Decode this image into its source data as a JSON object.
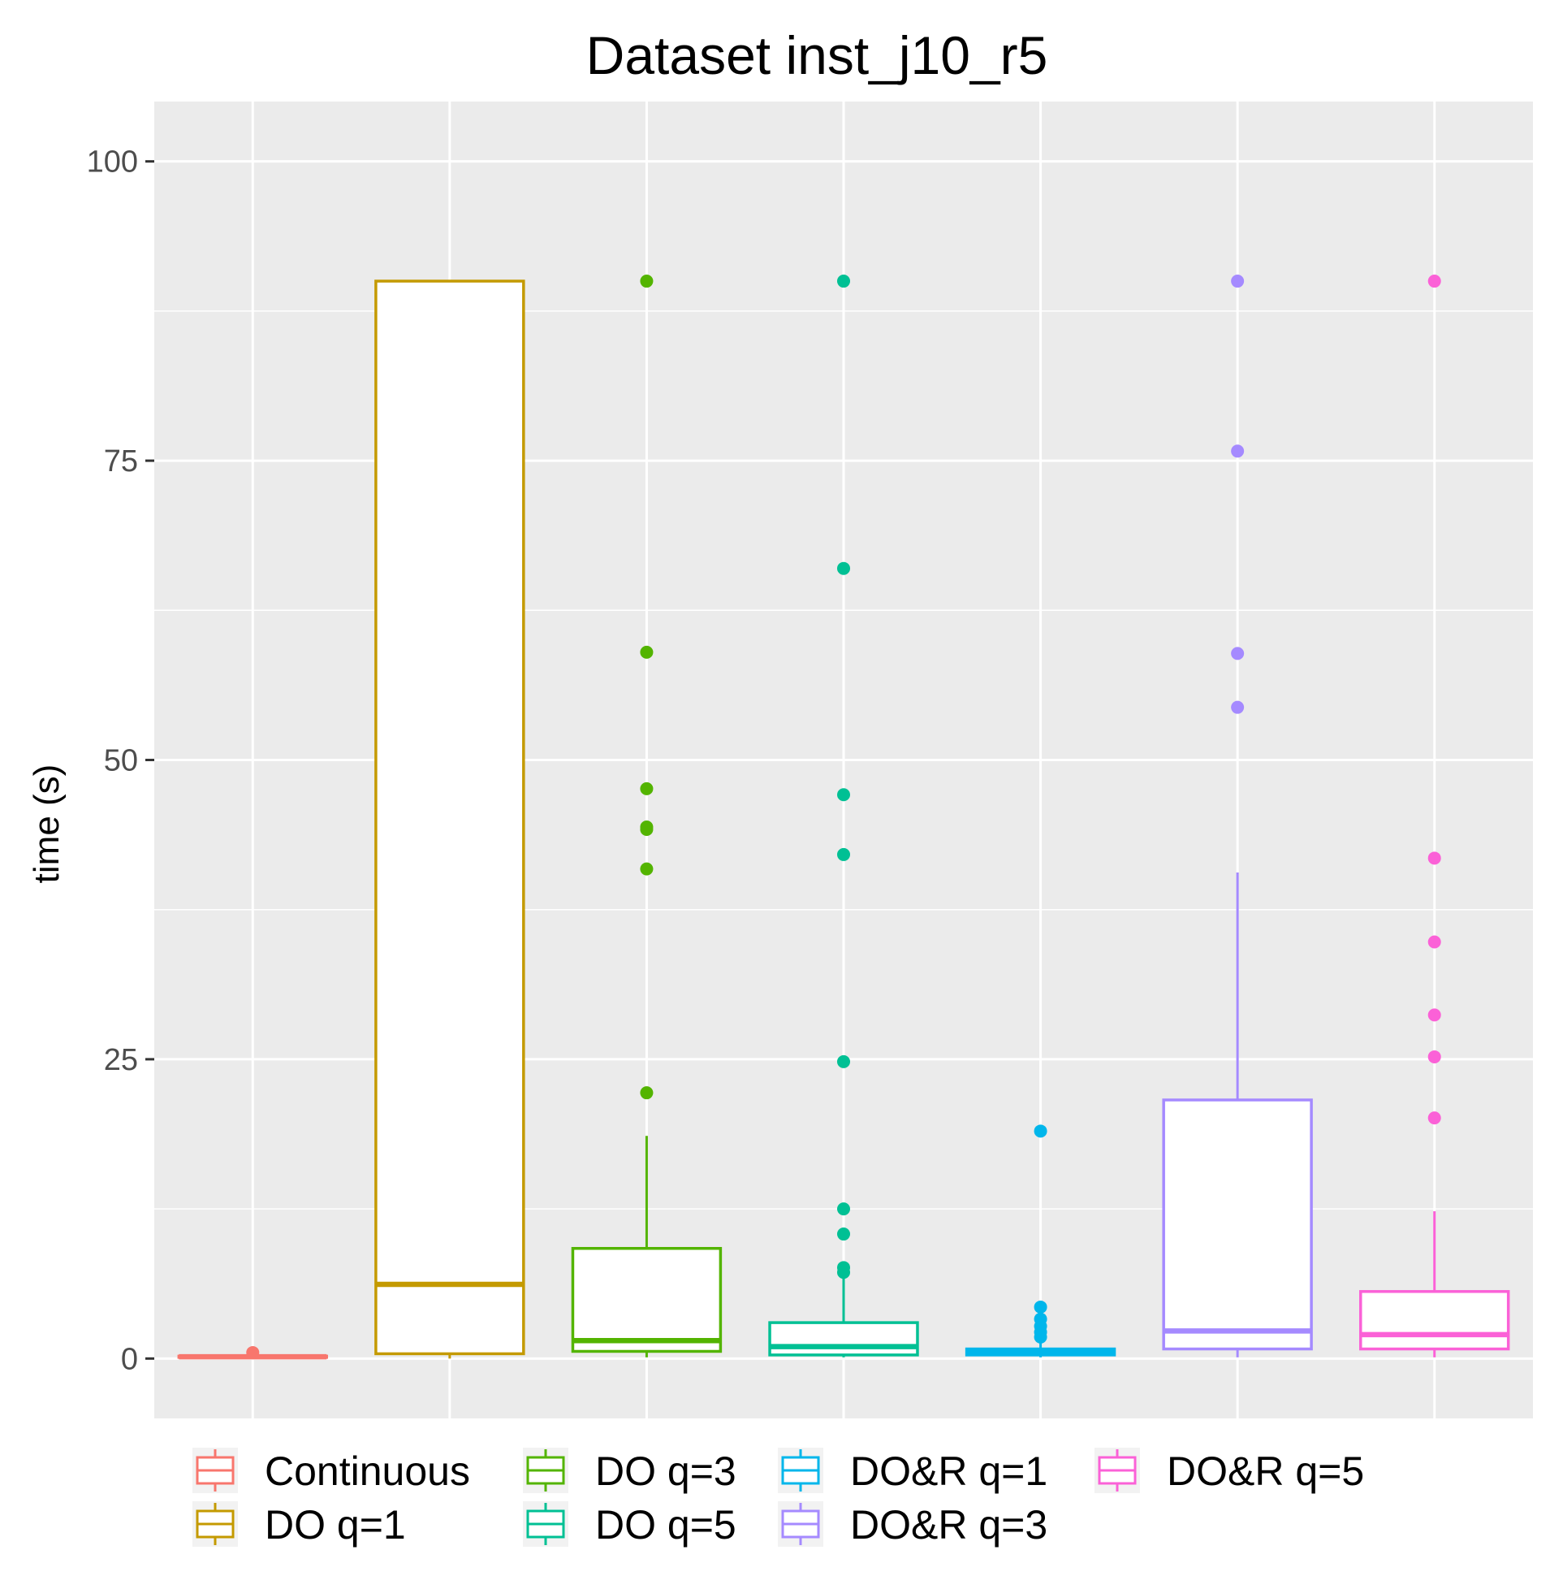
{
  "chart_data": {
    "type": "boxplot",
    "title": "Dataset inst_j10_r5",
    "xlabel": "",
    "ylabel": "time (s)",
    "ylim": [
      -5,
      105
    ],
    "yticks": [
      0,
      25,
      50,
      75,
      100
    ],
    "grid": true,
    "legend_position": "bottom",
    "categories": [
      "Continuous",
      "DO q=1",
      "DO q=3",
      "DO q=5",
      "DO&R q=1",
      "DO&R q=3",
      "DO&R q=5"
    ],
    "series": [
      {
        "name": "Continuous",
        "color": "#F8766D",
        "whisker_low": 0.1,
        "q1": 0.1,
        "median": 0.15,
        "q3": 0.2,
        "whisker_high": 0.3,
        "outliers": [
          0.5
        ]
      },
      {
        "name": "DO q=1",
        "color": "#C49A00",
        "whisker_low": 0.0,
        "q1": 0.4,
        "median": 6.2,
        "q3": 90.0,
        "whisker_high": 90.0,
        "outliers": []
      },
      {
        "name": "DO q=3",
        "color": "#53B400",
        "whisker_low": 0.1,
        "q1": 0.6,
        "median": 1.5,
        "q3": 9.2,
        "whisker_high": 18.6,
        "outliers": [
          22.2,
          40.9,
          44.2,
          44.4,
          47.6,
          59.0,
          90.0
        ]
      },
      {
        "name": "DO q=5",
        "color": "#00C094",
        "whisker_low": 0.1,
        "q1": 0.3,
        "median": 1.0,
        "q3": 3.0,
        "whisker_high": 6.8,
        "outliers": [
          7.2,
          7.6,
          10.4,
          12.5,
          24.8,
          42.1,
          47.1,
          66.0,
          90.0
        ]
      },
      {
        "name": "DO&R q=1",
        "color": "#00B6EB",
        "whisker_low": 0.1,
        "q1": 0.3,
        "median": 0.5,
        "q3": 0.8,
        "whisker_high": 1.5,
        "outliers": [
          1.8,
          2.2,
          2.7,
          3.3,
          4.3,
          19.0
        ]
      },
      {
        "name": "DO&R q=3",
        "color": "#A58AFF",
        "whisker_low": 0.1,
        "q1": 0.8,
        "median": 2.3,
        "q3": 21.6,
        "whisker_high": 40.6,
        "outliers": [
          54.4,
          58.9,
          75.8,
          90.0
        ]
      },
      {
        "name": "DO&R q=5",
        "color": "#FB61D7",
        "whisker_low": 0.1,
        "q1": 0.8,
        "median": 2.0,
        "q3": 5.6,
        "whisker_high": 12.3,
        "outliers": [
          20.1,
          25.2,
          28.7,
          34.8,
          41.8,
          90.0
        ]
      }
    ]
  },
  "legend": {
    "items": [
      "Continuous",
      "DO q=1",
      "DO q=3",
      "DO q=5",
      "DO&R q=1",
      "DO&R q=3",
      "DO&R q=5"
    ]
  }
}
